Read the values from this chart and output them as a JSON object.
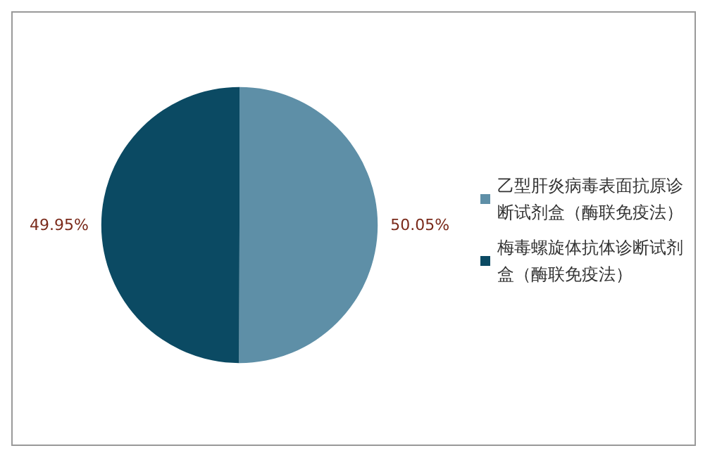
{
  "chart_data": {
    "type": "pie",
    "categories": [
      "乙型肝炎病毒表面抗原诊断试剂盒（酶联免疫法）",
      "梅毒螺旋体抗体诊断试剂盒（酶联免疫法）"
    ],
    "values": [
      50.05,
      49.95
    ],
    "colors": [
      "#5e8fa7",
      "#0b4a63"
    ],
    "value_labels": [
      "50.05%",
      "49.95%"
    ],
    "legend": "right"
  }
}
